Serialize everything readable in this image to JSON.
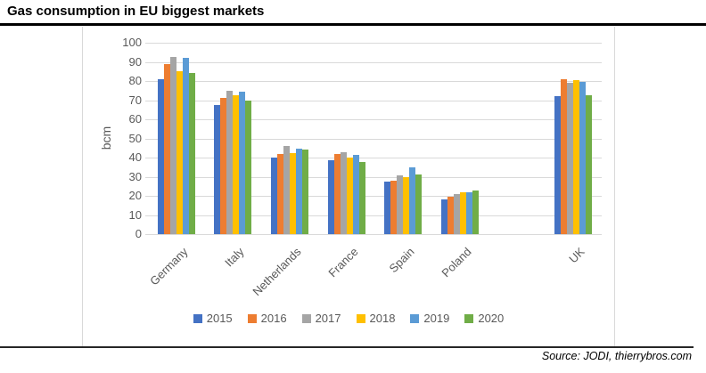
{
  "title": "Gas consumption in EU biggest markets",
  "source": "Source: JODI, thierrybros.com",
  "chart_data": {
    "type": "bar",
    "title": "Gas consumption in EU biggest markets",
    "xlabel": "",
    "ylabel": "bcm",
    "ylim": [
      0,
      100
    ],
    "ytick_step": 10,
    "grid": true,
    "legend_position": "bottom",
    "categories": [
      "Germany",
      "Italy",
      "Netherlands",
      "France",
      "Spain",
      "Poland",
      "",
      "UK"
    ],
    "series": [
      {
        "name": "2015",
        "color": "#4472C4",
        "values": [
          81,
          67.5,
          40,
          38.5,
          27.5,
          18,
          null,
          72
        ]
      },
      {
        "name": "2016",
        "color": "#ED7D31",
        "values": [
          89,
          71,
          42,
          42,
          28,
          19.5,
          null,
          81
        ]
      },
      {
        "name": "2017",
        "color": "#A5A5A5",
        "values": [
          92.5,
          75,
          46,
          43,
          30.5,
          21,
          null,
          79
        ]
      },
      {
        "name": "2018",
        "color": "#FFC000",
        "values": [
          85,
          72.5,
          42.5,
          40,
          30,
          22,
          null,
          80.5
        ]
      },
      {
        "name": "2019",
        "color": "#5B9BD5",
        "values": [
          92,
          74.5,
          44.5,
          41.5,
          35,
          22,
          null,
          79.5
        ]
      },
      {
        "name": "2020",
        "color": "#70AD47",
        "values": [
          84,
          70,
          44,
          37.5,
          31,
          23,
          null,
          72.5
        ]
      }
    ]
  }
}
